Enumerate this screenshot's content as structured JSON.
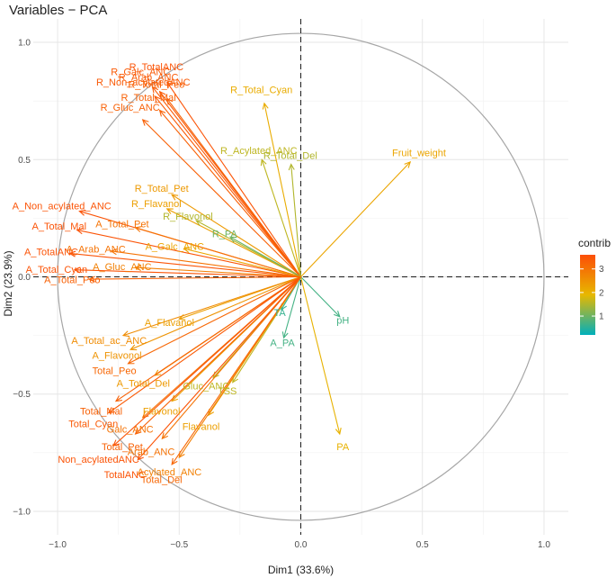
{
  "chart_data": {
    "type": "scatter",
    "subtype": "pca-variable-correlation-circle",
    "title": "Variables − PCA",
    "xlabel": "Dim1 (33.6%)",
    "ylabel": "Dim2 (23.9%)",
    "xlim": [
      -1.1,
      1.1
    ],
    "ylim": [
      -1.1,
      1.1
    ],
    "x_ticks": [
      -1.0,
      -0.5,
      0.0,
      0.5,
      1.0
    ],
    "y_ticks": [
      -1.0,
      -0.5,
      0.0,
      0.5,
      1.0
    ],
    "x_tick_labels": [
      "−1.0",
      "−0.5",
      "0.0",
      "0.5",
      "1.0"
    ],
    "y_tick_labels": [
      "−1.0",
      "−0.5",
      "0.0",
      "0.5",
      "1.0"
    ],
    "grid": true,
    "unit_circle": true,
    "legend": {
      "title": "contrib",
      "placement": "right",
      "ticks": [
        "1",
        "2",
        "3"
      ],
      "range": [
        0.2,
        3.6
      ]
    },
    "colors": {
      "low": "#00AFBB",
      "mid": "#E7B800",
      "high": "#FC4E07"
    },
    "variables": [
      {
        "name": "R_TotalANC",
        "x": -0.55,
        "y": 0.83,
        "contrib": 3.5
      },
      {
        "name": "R_Galc_ANC",
        "x": -0.61,
        "y": 0.81,
        "contrib": 3.4
      },
      {
        "name": "R_Arab_ANC",
        "x": -0.58,
        "y": 0.79,
        "contrib": 3.4
      },
      {
        "name": "R_Non_acylatedANC",
        "x": -0.6,
        "y": 0.77,
        "contrib": 3.4
      },
      {
        "name": "R_Total_Peo",
        "x": -0.55,
        "y": 0.76,
        "contrib": 3.3
      },
      {
        "name": "R_Total_Mal",
        "x": -0.58,
        "y": 0.71,
        "contrib": 3.3
      },
      {
        "name": "R_Gluc_ANC",
        "x": -0.65,
        "y": 0.67,
        "contrib": 3.3
      },
      {
        "name": "R_Total_Cyan",
        "x": -0.15,
        "y": 0.74,
        "contrib": 2.1
      },
      {
        "name": "R_Acylated_ANC",
        "x": -0.16,
        "y": 0.5,
        "contrib": 1.6
      },
      {
        "name": "R_Total_Del",
        "x": -0.04,
        "y": 0.48,
        "contrib": 1.5
      },
      {
        "name": "Fruit_weight",
        "x": 0.45,
        "y": 0.49,
        "contrib": 2.2
      },
      {
        "name": "R_Total_Pet",
        "x": -0.53,
        "y": 0.35,
        "contrib": 2.4
      },
      {
        "name": "R_Flavanol",
        "x": -0.55,
        "y": 0.29,
        "contrib": 2.3
      },
      {
        "name": "R_Flavonol",
        "x": -0.43,
        "y": 0.24,
        "contrib": 1.5
      },
      {
        "name": "R_PA",
        "x": -0.29,
        "y": 0.17,
        "contrib": 1.0
      },
      {
        "name": "A_Non_acylated_ANC",
        "x": -0.91,
        "y": 0.28,
        "contrib": 3.5
      },
      {
        "name": "A_Total_Pet",
        "x": -0.68,
        "y": 0.21,
        "contrib": 3.0
      },
      {
        "name": "A_Total_Mal",
        "x": -0.92,
        "y": 0.2,
        "contrib": 3.5
      },
      {
        "name": "A_Arab_ANC",
        "x": -0.78,
        "y": 0.11,
        "contrib": 3.0
      },
      {
        "name": "A_Galc_ANC",
        "x": -0.48,
        "y": 0.12,
        "contrib": 2.2
      },
      {
        "name": "A_TotalANC",
        "x": -0.95,
        "y": 0.1,
        "contrib": 3.5
      },
      {
        "name": "A_Gluc_ANC",
        "x": -0.68,
        "y": 0.04,
        "contrib": 2.8
      },
      {
        "name": "A_Total_Cyan",
        "x": -0.93,
        "y": 0.03,
        "contrib": 3.5
      },
      {
        "name": "A_Total_Peo",
        "x": -0.87,
        "y": -0.01,
        "contrib": 3.3
      },
      {
        "name": "pH",
        "x": 0.16,
        "y": -0.17,
        "contrib": 0.7
      },
      {
        "name": "TA",
        "x": -0.08,
        "y": -0.14,
        "contrib": 0.6
      },
      {
        "name": "A_PA",
        "x": -0.07,
        "y": -0.26,
        "contrib": 0.7
      },
      {
        "name": "A_Flavanol",
        "x": -0.5,
        "y": -0.18,
        "contrib": 2.3
      },
      {
        "name": "A_Total_ac_ANC",
        "x": -0.73,
        "y": -0.25,
        "contrib": 2.6
      },
      {
        "name": "A_Flavonol",
        "x": -0.7,
        "y": -0.31,
        "contrib": 2.5
      },
      {
        "name": "Total_Peo",
        "x": -0.71,
        "y": -0.37,
        "contrib": 3.2
      },
      {
        "name": "A_Total_Del",
        "x": -0.6,
        "y": -0.42,
        "contrib": 2.4
      },
      {
        "name": "Gluc_ANC",
        "x": -0.36,
        "y": -0.43,
        "contrib": 1.6
      },
      {
        "name": "TSS",
        "x": -0.28,
        "y": -0.45,
        "contrib": 1.6
      },
      {
        "name": "Total_Mal",
        "x": -0.76,
        "y": -0.53,
        "contrib": 3.3
      },
      {
        "name": "Total_Cyan",
        "x": -0.79,
        "y": -0.58,
        "contrib": 3.4
      },
      {
        "name": "Flavonol",
        "x": -0.53,
        "y": -0.53,
        "contrib": 2.3
      },
      {
        "name": "Galc_ANC",
        "x": -0.65,
        "y": -0.6,
        "contrib": 3.0
      },
      {
        "name": "Total_Pet",
        "x": -0.68,
        "y": -0.67,
        "contrib": 3.3
      },
      {
        "name": "Flavanol",
        "x": -0.38,
        "y": -0.59,
        "contrib": 2.3
      },
      {
        "name": "PA",
        "x": 0.16,
        "y": -0.67,
        "contrib": 2.0
      },
      {
        "name": "Arab_ANC",
        "x": -0.57,
        "y": -0.69,
        "contrib": 3.0
      },
      {
        "name": "Non_acylatedANC",
        "x": -0.77,
        "y": -0.72,
        "contrib": 3.5
      },
      {
        "name": "Acylated_ANC",
        "x": -0.5,
        "y": -0.77,
        "contrib": 2.8
      },
      {
        "name": "TotalANC",
        "x": -0.67,
        "y": -0.78,
        "contrib": 3.5
      },
      {
        "name": "Total_Del",
        "x": -0.53,
        "y": -0.8,
        "contrib": 3.2
      }
    ]
  }
}
